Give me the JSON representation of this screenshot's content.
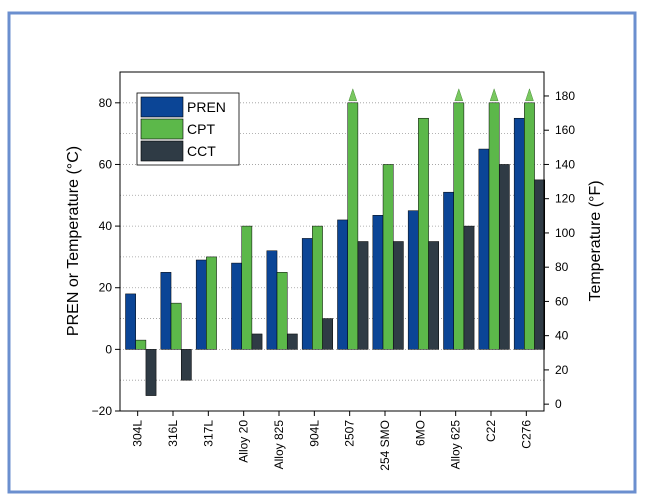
{
  "chart_data": {
    "type": "bar",
    "categories": [
      "304L",
      "316L",
      "317L",
      "Alloy 20",
      "Alloy 825",
      "904L",
      "2507",
      "254 SMO",
      "6MO",
      "Alloy 625",
      "C22",
      "C276"
    ],
    "series": [
      {
        "name": "PREN",
        "values": [
          18,
          25,
          29,
          28,
          32,
          36,
          42,
          43.5,
          45,
          51,
          65,
          75
        ],
        "color": "#0b4596"
      },
      {
        "name": "CPT",
        "values": [
          3,
          15,
          30,
          40,
          25,
          40,
          80,
          60,
          75,
          80,
          80,
          80
        ],
        "color": "#5cb84a",
        "above_range_markers": [
          "2507",
          "Alloy 625",
          "C22",
          "C276"
        ]
      },
      {
        "name": "CCT",
        "values": [
          -15,
          -10,
          0,
          5,
          5,
          10,
          35,
          35,
          35,
          40,
          60,
          55
        ],
        "color": "#2f3b45"
      }
    ],
    "y_axis_left": {
      "label": "PREN or Temperature (°C)",
      "ylim": [
        -20,
        90
      ],
      "ticks": [
        -20,
        0,
        20,
        40,
        60,
        80
      ]
    },
    "y_axis_right": {
      "label": "Temperature (°F)",
      "ticks": [
        0,
        20,
        40,
        60,
        80,
        100,
        120,
        140,
        160,
        180
      ]
    },
    "grid": "horizontal dotted",
    "legend_placement": "top-left",
    "frame_color": "#6b8fcf",
    "marker_color": "#79c85f"
  }
}
